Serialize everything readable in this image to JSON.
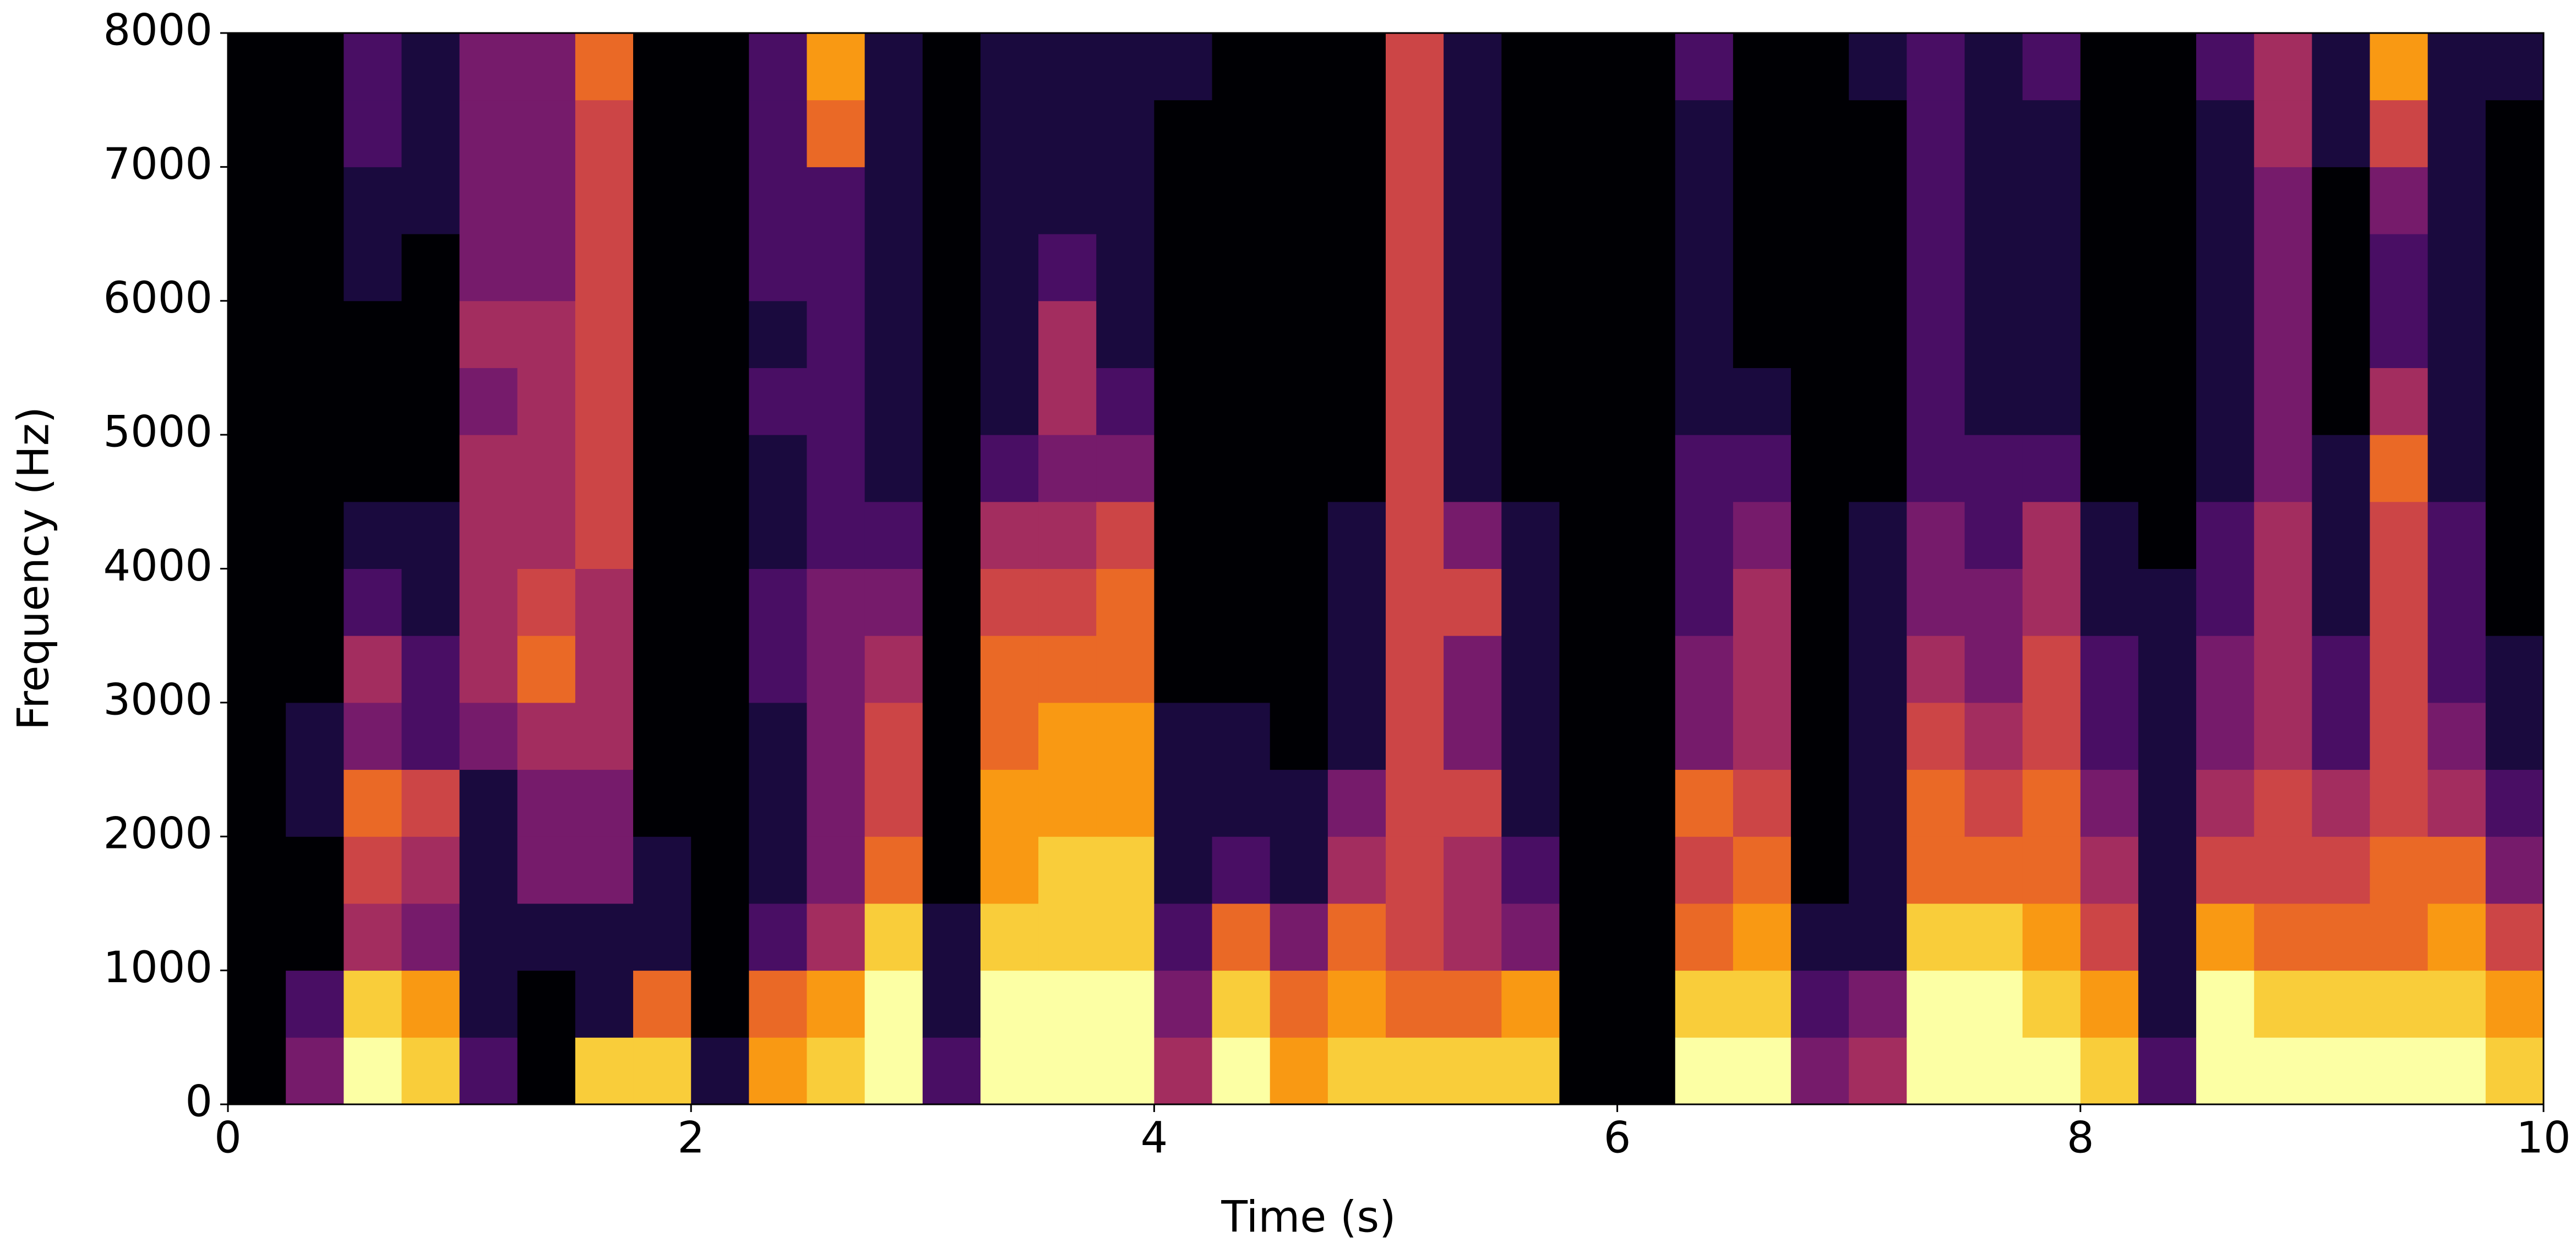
{
  "chart_data": {
    "type": "spectrogram",
    "xlabel": "Time (s)",
    "ylabel": "Frequency (Hz)",
    "colormap": "inferno",
    "clim": [
      0,
      9
    ],
    "xlim": [
      0,
      10
    ],
    "ylim": [
      0,
      8000
    ],
    "xticks": [
      0,
      2,
      4,
      6,
      8,
      10
    ],
    "yticks": [
      0,
      1000,
      2000,
      3000,
      4000,
      5000,
      6000,
      7000,
      8000
    ],
    "x": [
      0.125,
      0.375,
      0.625,
      0.875,
      1.125,
      1.375,
      1.625,
      1.875,
      2.125,
      2.375,
      2.625,
      2.875,
      3.125,
      3.375,
      3.625,
      3.875,
      4.125,
      4.375,
      4.625,
      4.875,
      5.125,
      5.375,
      5.625,
      5.875,
      6.125,
      6.375,
      6.625,
      6.875,
      7.125,
      7.375,
      7.625,
      7.875,
      8.125,
      8.375,
      8.625,
      8.875,
      9.125,
      9.375,
      9.625,
      9.875
    ],
    "y": [
      250,
      750,
      1250,
      1750,
      2250,
      2750,
      3250,
      3750,
      4250,
      4750,
      5250,
      5750,
      6250,
      6750,
      7250,
      7750
    ],
    "values": [
      [
        0,
        0,
        0,
        0,
        0,
        0,
        0,
        0,
        0,
        0,
        0,
        0,
        0,
        0,
        0,
        0
      ],
      [
        3,
        2,
        0,
        0,
        1,
        1,
        0,
        0,
        0,
        0,
        0,
        0,
        0,
        0,
        0,
        0
      ],
      [
        9,
        8,
        4,
        5,
        6,
        3,
        4,
        2,
        1,
        0,
        0,
        0,
        1,
        1,
        2,
        2
      ],
      [
        8,
        7,
        3,
        4,
        5,
        2,
        2,
        1,
        1,
        0,
        0,
        0,
        0,
        1,
        1,
        1
      ],
      [
        2,
        1,
        1,
        1,
        1,
        3,
        4,
        4,
        4,
        4,
        3,
        4,
        3,
        3,
        3,
        3
      ],
      [
        0,
        0,
        1,
        3,
        3,
        4,
        6,
        5,
        4,
        4,
        4,
        4,
        3,
        3,
        3,
        3
      ],
      [
        8,
        1,
        1,
        3,
        3,
        4,
        4,
        4,
        5,
        5,
        5,
        5,
        5,
        5,
        5,
        6
      ],
      [
        8,
        6,
        1,
        1,
        0,
        0,
        0,
        0,
        0,
        0,
        0,
        0,
        0,
        0,
        0,
        0
      ],
      [
        1,
        0,
        0,
        0,
        0,
        0,
        0,
        0,
        0,
        0,
        0,
        0,
        0,
        0,
        0,
        0
      ],
      [
        7,
        6,
        2,
        1,
        1,
        1,
        2,
        2,
        1,
        1,
        2,
        1,
        2,
        2,
        2,
        2
      ],
      [
        8,
        7,
        4,
        3,
        3,
        3,
        3,
        3,
        2,
        2,
        2,
        2,
        2,
        2,
        6,
        7
      ],
      [
        9,
        9,
        8,
        6,
        5,
        5,
        4,
        3,
        2,
        1,
        1,
        1,
        1,
        1,
        1,
        1
      ],
      [
        2,
        1,
        1,
        0,
        0,
        0,
        0,
        0,
        0,
        0,
        0,
        0,
        0,
        0,
        0,
        0
      ],
      [
        9,
        9,
        8,
        7,
        7,
        6,
        6,
        5,
        4,
        2,
        1,
        1,
        1,
        1,
        1,
        1
      ],
      [
        9,
        9,
        8,
        8,
        7,
        7,
        6,
        5,
        4,
        3,
        4,
        4,
        2,
        1,
        1,
        1
      ],
      [
        9,
        9,
        8,
        8,
        7,
        7,
        6,
        6,
        5,
        3,
        2,
        1,
        1,
        1,
        1,
        1
      ],
      [
        4,
        3,
        2,
        1,
        1,
        1,
        0,
        0,
        0,
        0,
        0,
        0,
        0,
        0,
        0,
        1
      ],
      [
        9,
        8,
        6,
        2,
        1,
        1,
        0,
        0,
        0,
        0,
        0,
        0,
        0,
        0,
        0,
        0
      ],
      [
        7,
        6,
        3,
        1,
        1,
        0,
        0,
        0,
        0,
        0,
        0,
        0,
        0,
        0,
        0,
        0
      ],
      [
        8,
        7,
        6,
        4,
        3,
        1,
        1,
        1,
        1,
        0,
        0,
        0,
        0,
        0,
        0,
        0
      ],
      [
        8,
        6,
        5,
        5,
        5,
        5,
        5,
        5,
        5,
        5,
        5,
        5,
        5,
        5,
        5,
        5
      ],
      [
        8,
        6,
        4,
        4,
        5,
        3,
        3,
        5,
        3,
        1,
        1,
        1,
        1,
        1,
        1,
        1
      ],
      [
        8,
        7,
        3,
        2,
        1,
        1,
        1,
        1,
        1,
        0,
        0,
        0,
        0,
        0,
        0,
        0
      ],
      [
        0,
        0,
        0,
        0,
        0,
        0,
        0,
        0,
        0,
        0,
        0,
        0,
        0,
        0,
        0,
        0
      ],
      [
        0,
        0,
        0,
        0,
        0,
        0,
        0,
        0,
        0,
        0,
        0,
        0,
        0,
        0,
        0,
        0
      ],
      [
        9,
        8,
        6,
        5,
        6,
        3,
        3,
        2,
        2,
        2,
        1,
        1,
        1,
        1,
        1,
        2
      ],
      [
        9,
        8,
        7,
        6,
        5,
        4,
        4,
        4,
        3,
        2,
        1,
        0,
        0,
        0,
        0,
        0
      ],
      [
        3,
        2,
        1,
        0,
        0,
        0,
        0,
        0,
        0,
        0,
        0,
        0,
        0,
        0,
        0,
        0
      ],
      [
        4,
        3,
        1,
        1,
        1,
        1,
        1,
        1,
        1,
        0,
        0,
        0,
        0,
        0,
        0,
        1
      ],
      [
        9,
        9,
        8,
        6,
        6,
        5,
        4,
        3,
        3,
        2,
        2,
        2,
        2,
        2,
        2,
        2
      ],
      [
        9,
        9,
        8,
        6,
        5,
        4,
        3,
        3,
        2,
        2,
        1,
        1,
        1,
        1,
        1,
        1
      ],
      [
        9,
        8,
        7,
        6,
        6,
        5,
        5,
        4,
        4,
        2,
        1,
        1,
        1,
        1,
        1,
        2
      ],
      [
        8,
        7,
        5,
        4,
        3,
        2,
        2,
        1,
        1,
        0,
        0,
        0,
        0,
        0,
        0,
        0
      ],
      [
        2,
        1,
        1,
        1,
        1,
        1,
        1,
        1,
        0,
        0,
        0,
        0,
        0,
        0,
        0,
        0
      ],
      [
        9,
        9,
        7,
        5,
        4,
        3,
        3,
        2,
        2,
        1,
        1,
        1,
        1,
        1,
        1,
        2
      ],
      [
        9,
        8,
        6,
        5,
        5,
        4,
        4,
        4,
        4,
        3,
        3,
        3,
        3,
        3,
        4,
        4
      ],
      [
        9,
        8,
        6,
        5,
        4,
        2,
        2,
        1,
        1,
        1,
        0,
        0,
        0,
        0,
        1,
        1
      ],
      [
        9,
        8,
        6,
        6,
        5,
        5,
        5,
        5,
        5,
        6,
        4,
        2,
        2,
        3,
        5,
        7
      ],
      [
        9,
        8,
        7,
        6,
        4,
        3,
        2,
        2,
        2,
        1,
        1,
        1,
        1,
        1,
        1,
        1
      ],
      [
        8,
        7,
        5,
        3,
        2,
        1,
        1,
        0,
        0,
        0,
        0,
        0,
        0,
        0,
        0,
        1
      ]
    ]
  }
}
